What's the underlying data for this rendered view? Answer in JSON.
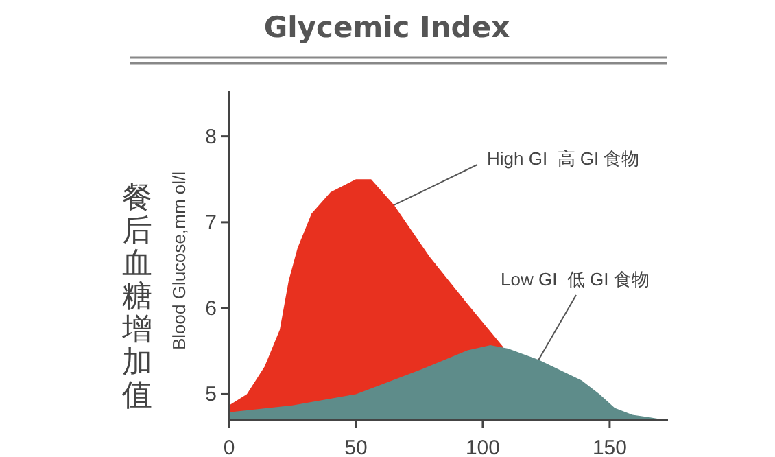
{
  "chart_data": {
    "type": "area",
    "title": "Glycemic Index",
    "ylabel": "Blood Glucose,mm ol/l",
    "annotations": [
      "餐后血糖增加值"
    ],
    "xlim": [
      0,
      173
    ],
    "ylim": [
      4.7,
      8.5
    ],
    "xticks": [
      0,
      50,
      100,
      150
    ],
    "yticks": [
      5,
      6,
      7,
      8
    ],
    "grid": false,
    "series": [
      {
        "name": "High GI  高 GI 食物",
        "color": "#e8311f",
        "x": [
          0,
          7,
          14,
          20,
          23.5,
          27,
          32.5,
          40,
          50,
          56,
          65,
          79,
          94,
          108
        ],
        "values": [
          4.87,
          5.0,
          5.32,
          5.75,
          6.32,
          6.7,
          7.1,
          7.35,
          7.5,
          7.5,
          7.2,
          6.6,
          6.05,
          5.55
        ]
      },
      {
        "name": "Low GI  低 GI 食物",
        "color": "#5e8c8a",
        "x": [
          0,
          25,
          50,
          76,
          94,
          103,
          110,
          122,
          139,
          146,
          152,
          159,
          166,
          170
        ],
        "values": [
          4.79,
          4.87,
          5.0,
          5.29,
          5.51,
          5.57,
          5.53,
          5.4,
          5.16,
          5.0,
          4.84,
          4.76,
          4.73,
          4.71
        ]
      }
    ]
  }
}
